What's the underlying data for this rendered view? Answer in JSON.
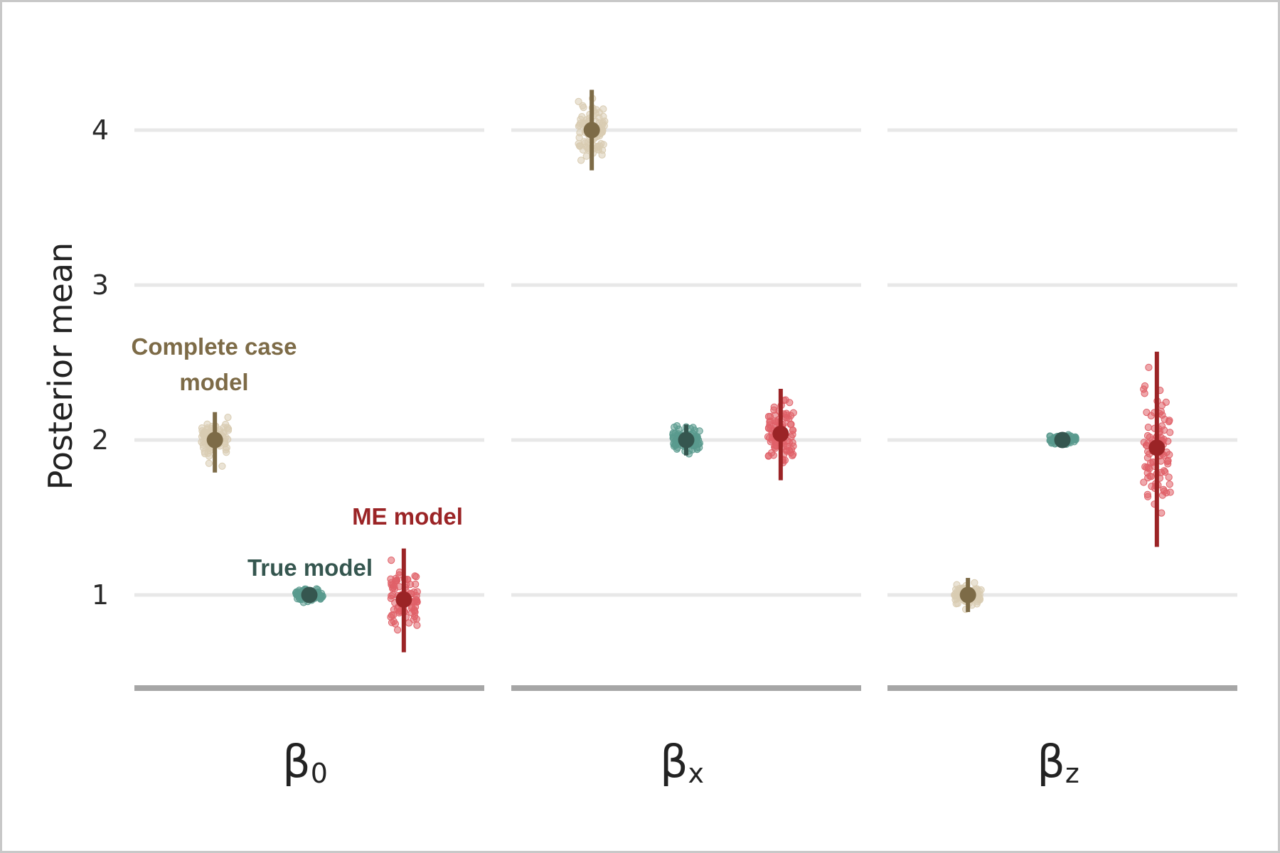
{
  "chart_data": {
    "type": "scatter",
    "ylabel": "Posterior mean",
    "xlabel": "",
    "ylim": [
      0.42,
      4.55
    ],
    "yticks": [
      1,
      2,
      3,
      4
    ],
    "grid": true,
    "legend": "none (direct labels)",
    "panels": [
      {
        "label": "β",
        "sub": "0"
      },
      {
        "label": "β",
        "sub": "x"
      },
      {
        "label": "β",
        "sub": "z"
      }
    ],
    "series": [
      {
        "name": "Complete case model",
        "color": "#7d6b47",
        "point_color": "#d9ccb2",
        "estimates": [
          {
            "panel": 0,
            "mean": 2.0,
            "low": 1.79,
            "high": 2.18,
            "spread_low": 1.79,
            "spread_high": 2.28
          },
          {
            "panel": 1,
            "mean": 4.0,
            "low": 3.74,
            "high": 4.26,
            "spread_low": 3.69,
            "spread_high": 4.38
          },
          {
            "panel": 2,
            "mean": 1.0,
            "low": 0.89,
            "high": 1.11,
            "spread_low": 0.87,
            "spread_high": 1.14
          }
        ]
      },
      {
        "name": "True model",
        "color": "#35564f",
        "point_color": "#5a9a8e",
        "estimates": [
          {
            "panel": 0,
            "mean": 1.0,
            "low": 0.95,
            "high": 1.05,
            "spread_low": 0.94,
            "spread_high": 1.08
          },
          {
            "panel": 1,
            "mean": 2.0,
            "low": 1.9,
            "high": 2.1,
            "spread_low": 1.84,
            "spread_high": 2.17
          },
          {
            "panel": 2,
            "mean": 2.0,
            "low": 1.97,
            "high": 2.03,
            "spread_low": 1.97,
            "spread_high": 2.06
          }
        ]
      },
      {
        "name": "ME model",
        "color": "#9b2426",
        "point_color": "#e06068",
        "estimates": [
          {
            "panel": 0,
            "mean": 0.97,
            "low": 0.63,
            "high": 1.3,
            "spread_low": 0.6,
            "spread_high": 1.38
          },
          {
            "panel": 1,
            "mean": 2.04,
            "low": 1.74,
            "high": 2.33,
            "spread_low": 1.63,
            "spread_high": 2.33
          },
          {
            "panel": 2,
            "mean": 1.95,
            "low": 1.31,
            "high": 2.57,
            "spread_low": 1.18,
            "spread_high": 2.63
          }
        ]
      }
    ],
    "annotations": [
      {
        "text": "Complete case\nmodel",
        "series": "Complete case model",
        "panel": 0
      },
      {
        "text": "True model",
        "series": "True model",
        "panel": 0
      },
      {
        "text": "ME model",
        "series": "ME model",
        "panel": 0
      }
    ]
  }
}
